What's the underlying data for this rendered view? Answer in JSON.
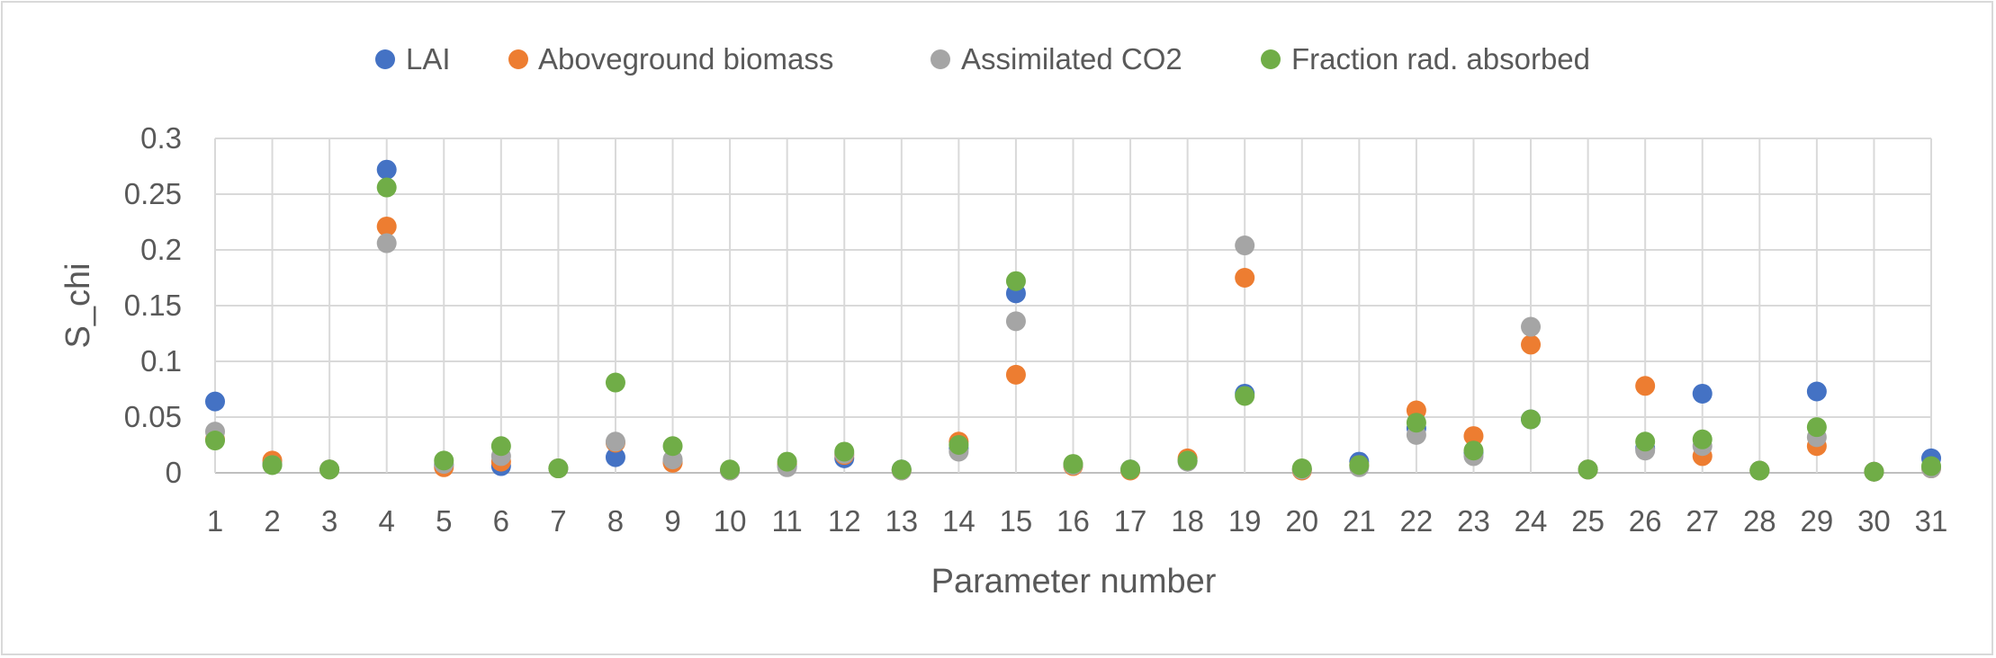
{
  "chart_data": {
    "type": "scatter",
    "title": "",
    "xlabel": "Parameter number",
    "ylabel": "S_chi",
    "ylim": [
      0,
      0.3
    ],
    "yticks": [
      "0",
      "0.05",
      "0.1",
      "0.15",
      "0.2",
      "0.25",
      "0.3"
    ],
    "yticks_values": [
      0,
      0.05,
      0.1,
      0.15,
      0.2,
      0.25,
      0.3
    ],
    "x": [
      1,
      2,
      3,
      4,
      5,
      6,
      7,
      8,
      9,
      10,
      11,
      12,
      13,
      14,
      15,
      16,
      17,
      18,
      19,
      20,
      21,
      22,
      23,
      24,
      25,
      26,
      27,
      28,
      29,
      30,
      31
    ],
    "xticks": [
      "1",
      "2",
      "3",
      "4",
      "5",
      "6",
      "7",
      "8",
      "9",
      "10",
      "11",
      "12",
      "13",
      "14",
      "15",
      "16",
      "17",
      "18",
      "19",
      "20",
      "21",
      "22",
      "23",
      "24",
      "25",
      "26",
      "27",
      "28",
      "29",
      "30",
      "31"
    ],
    "grid": true,
    "legend_position": "top",
    "series": [
      {
        "name": "LAI",
        "color": "#4472c4",
        "values": [
          0.064,
          0.008,
          0.003,
          0.272,
          0.007,
          0.006,
          0.004,
          0.014,
          0.01,
          0.002,
          0.006,
          0.013,
          0.003,
          0.022,
          0.161,
          0.007,
          0.003,
          0.011,
          0.071,
          0.003,
          0.01,
          0.04,
          0.018,
          0.048,
          0.003,
          0.022,
          0.071,
          0.002,
          0.073,
          0.001,
          0.013
        ]
      },
      {
        "name": "Aboveground biomass",
        "color": "#ed7d31",
        "values": [
          0.03,
          0.011,
          0.003,
          0.221,
          0.005,
          0.01,
          0.004,
          0.027,
          0.009,
          0.002,
          0.008,
          0.016,
          0.002,
          0.028,
          0.088,
          0.006,
          0.002,
          0.013,
          0.175,
          0.002,
          0.007,
          0.056,
          0.033,
          0.115,
          0.003,
          0.078,
          0.015,
          0.002,
          0.024,
          0.001,
          0.004
        ]
      },
      {
        "name": "Assimilated CO2",
        "color": "#a5a5a5",
        "values": [
          0.037,
          0.007,
          0.003,
          0.206,
          0.008,
          0.015,
          0.004,
          0.028,
          0.012,
          0.002,
          0.005,
          0.017,
          0.002,
          0.019,
          0.136,
          0.007,
          0.003,
          0.01,
          0.204,
          0.003,
          0.005,
          0.034,
          0.015,
          0.131,
          0.003,
          0.02,
          0.024,
          0.002,
          0.032,
          0.001,
          0.004
        ]
      },
      {
        "name": "Fraction rad. absorbed",
        "color": "#70ad47",
        "values": [
          0.029,
          0.007,
          0.003,
          0.256,
          0.011,
          0.024,
          0.004,
          0.081,
          0.024,
          0.003,
          0.01,
          0.019,
          0.003,
          0.025,
          0.172,
          0.008,
          0.003,
          0.011,
          0.069,
          0.004,
          0.007,
          0.045,
          0.02,
          0.048,
          0.003,
          0.028,
          0.03,
          0.002,
          0.041,
          0.001,
          0.006
        ]
      }
    ]
  }
}
